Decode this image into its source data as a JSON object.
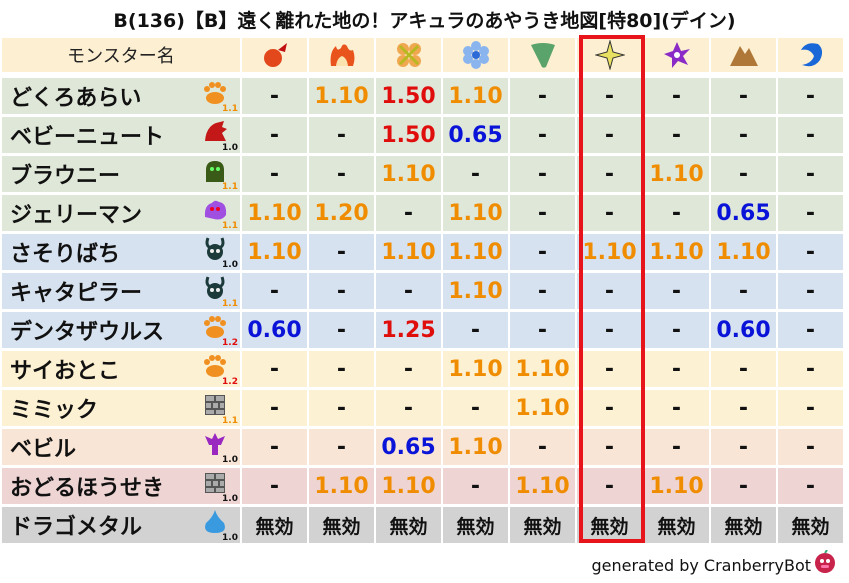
{
  "title": "B(136)【B】遠く離れた地の！アキュラのあやうき地図[特80](デイン)",
  "header": {
    "name_label": "モンスター名",
    "elements": [
      "fire-orb",
      "flame",
      "cross-burst",
      "ice-flower",
      "tornado",
      "light-star",
      "dark-pinwheel",
      "earth-mountain",
      "water-wave"
    ],
    "highlighted_column": 5
  },
  "colors": {
    "1.10": "#f08c00",
    "1.20": "#f08c00",
    "1.50": "#e00d0d",
    "1.25": "#e00d0d",
    "0.65": "#0a14d8",
    "0.60": "#0a14d8",
    "-": "#111",
    "無効": "#111",
    "lvl_1.0": "#111",
    "lvl_1.1": "#f08c00",
    "lvl_1.2": "#e00d0d"
  },
  "rows": [
    {
      "name": "どくろあらい",
      "icon": "paw",
      "level": "1.1",
      "tone": "g",
      "values": [
        "-",
        "1.10",
        "1.50",
        "1.10",
        "-",
        "-",
        "-",
        "-",
        "-"
      ]
    },
    {
      "name": "ベビーニュート",
      "icon": "dragon",
      "level": "1.0",
      "tone": "g",
      "values": [
        "-",
        "-",
        "1.50",
        "0.65",
        "-",
        "-",
        "-",
        "-",
        "-"
      ]
    },
    {
      "name": "ブラウニー",
      "icon": "ghost",
      "level": "1.1",
      "tone": "g",
      "values": [
        "-",
        "-",
        "1.10",
        "-",
        "-",
        "-",
        "1.10",
        "-",
        "-"
      ]
    },
    {
      "name": "ジェリーマン",
      "icon": "purple-blob",
      "level": "1.1",
      "tone": "g",
      "values": [
        "1.10",
        "1.20",
        "-",
        "1.10",
        "-",
        "-",
        "-",
        "0.65",
        "-"
      ]
    },
    {
      "name": "さそりばち",
      "icon": "insect",
      "level": "1.0",
      "tone": "b",
      "values": [
        "1.10",
        "-",
        "1.10",
        "1.10",
        "-",
        "1.10",
        "1.10",
        "1.10",
        "-"
      ]
    },
    {
      "name": "キャタピラー",
      "icon": "insect",
      "level": "1.1",
      "tone": "b",
      "values": [
        "-",
        "-",
        "-",
        "1.10",
        "-",
        "-",
        "-",
        "-",
        "-"
      ]
    },
    {
      "name": "デンタザウルス",
      "icon": "paw",
      "level": "1.2",
      "tone": "b",
      "values": [
        "0.60",
        "-",
        "1.25",
        "-",
        "-",
        "-",
        "-",
        "0.60",
        "-"
      ]
    },
    {
      "name": "サイおとこ",
      "icon": "paw",
      "level": "1.2",
      "tone": "y",
      "values": [
        "-",
        "-",
        "-",
        "1.10",
        "1.10",
        "-",
        "-",
        "-",
        "-"
      ]
    },
    {
      "name": "ミミック",
      "icon": "brick",
      "level": "1.1",
      "tone": "y",
      "values": [
        "-",
        "-",
        "-",
        "-",
        "1.10",
        "-",
        "-",
        "-",
        "-"
      ]
    },
    {
      "name": "ベビル",
      "icon": "demon",
      "level": "1.0",
      "tone": "p",
      "values": [
        "-",
        "-",
        "0.65",
        "1.10",
        "-",
        "-",
        "-",
        "-",
        "-"
      ]
    },
    {
      "name": "おどるほうせき",
      "icon": "brick",
      "level": "1.0",
      "tone": "r",
      "values": [
        "-",
        "1.10",
        "1.10",
        "-",
        "1.10",
        "-",
        "1.10",
        "-",
        "-"
      ]
    },
    {
      "name": "ドラゴメタル",
      "icon": "slime",
      "level": "1.0",
      "tone": "k",
      "values": [
        "無効",
        "無効",
        "無効",
        "無効",
        "無効",
        "無効",
        "無効",
        "無効",
        "無効"
      ]
    }
  ],
  "footer": "generated by CranberryBot"
}
